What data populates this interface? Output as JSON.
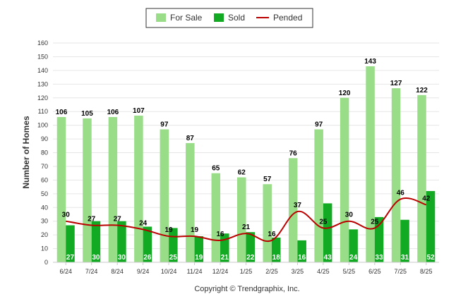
{
  "chart_data": {
    "type": "bar",
    "ylabel": "Number of Homes",
    "ylim": [
      0,
      160
    ],
    "yticks": [
      0,
      10,
      20,
      30,
      40,
      50,
      60,
      70,
      80,
      90,
      100,
      110,
      120,
      130,
      140,
      150,
      160
    ],
    "grid": true,
    "legend_position": "top-center",
    "categories": [
      "6/24",
      "7/24",
      "8/24",
      "9/24",
      "10/24",
      "11/24",
      "12/24",
      "1/25",
      "2/25",
      "3/25",
      "4/25",
      "5/25",
      "6/25",
      "7/25",
      "8/25"
    ],
    "series": [
      {
        "name": "For Sale",
        "type": "bar",
        "color": "#99dd88",
        "values": [
          106,
          105,
          106,
          107,
          97,
          87,
          65,
          62,
          57,
          76,
          97,
          120,
          143,
          127,
          122
        ]
      },
      {
        "name": "Sold",
        "type": "bar",
        "color": "#11aa22",
        "values": [
          27,
          30,
          30,
          26,
          25,
          19,
          21,
          22,
          18,
          16,
          43,
          24,
          33,
          31,
          52
        ]
      },
      {
        "name": "Pended",
        "type": "line",
        "color": "#bb0000",
        "values": [
          30,
          27,
          27,
          24,
          19,
          19,
          16,
          21,
          16,
          37,
          25,
          30,
          25,
          46,
          42
        ]
      }
    ]
  },
  "footer": {
    "credit": "Copyright © Trendgraphix, Inc."
  }
}
